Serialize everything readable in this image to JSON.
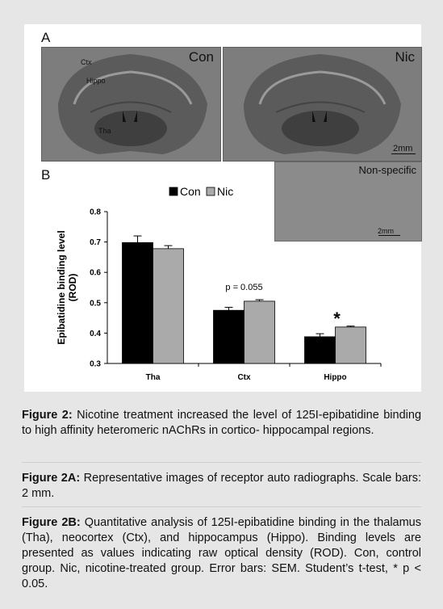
{
  "figure": {
    "panel_a_letter": "A",
    "panel_b_letter": "B",
    "image_con_label": "Con",
    "image_nic_label": "Nic",
    "regions": [
      "Ctx",
      "Hippo",
      "Tha"
    ],
    "scalebar_label": "2mm",
    "nonspecific_label": "Non-specific",
    "nonspecific_scalebar_label": "2mm"
  },
  "chart_data": {
    "type": "bar",
    "categories": [
      "Tha",
      "Ctx",
      "Hippo"
    ],
    "series": [
      {
        "name": "Con",
        "values": [
          0.698,
          0.475,
          0.388
        ],
        "errors": [
          0.022,
          0.01,
          0.01
        ],
        "color": "#000000"
      },
      {
        "name": "Nic",
        "values": [
          0.678,
          0.505,
          0.42
        ],
        "errors": [
          0.01,
          0.005,
          0.003
        ],
        "color": "#aaaaaa"
      }
    ],
    "ylabel_line1": "Epibatidine binding level",
    "ylabel_line2": "(ROD)",
    "ylim": [
      0.3,
      0.8
    ],
    "yticks": [
      "0.3",
      "0.4",
      "0.5",
      "0.6",
      "0.7",
      "0.8"
    ],
    "annotations": [
      {
        "category": "Ctx",
        "text": "p = 0.055"
      },
      {
        "category": "Hippo",
        "text": "*"
      }
    ],
    "legend_placement": "top"
  },
  "captions": {
    "fig2_bold": "Figure 2:",
    "fig2_text": " Nicotine treatment increased the level of 125I-epibatidine binding to high affinity heteromeric nAChRs in cortico- hippocampal regions.",
    "fig2a_bold": "Figure 2A:",
    "fig2a_text": " Representative images of receptor auto radiographs. Scale bars: 2 mm.",
    "fig2b_bold": "Figure 2B:",
    "fig2b_text": " Quantitative analysis of 125I-epibatidine binding in the thalamus (Tha), neocortex (Ctx), and hippocampus (Hippo). Binding levels are presented as values indicating raw optical density (ROD). Con, control group. Nic, nicotine-treated group. Error bars: SEM. Student’s t-test, * p < 0.05."
  }
}
